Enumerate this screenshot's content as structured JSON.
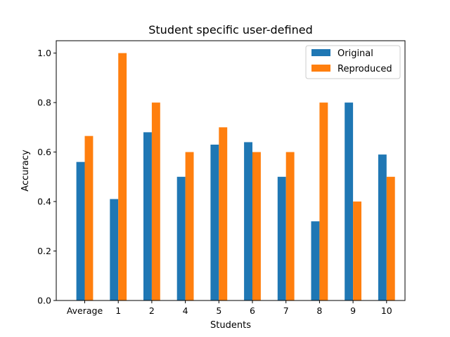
{
  "chart_data": {
    "type": "bar",
    "title": "Student specific user-defined",
    "xlabel": "Students",
    "ylabel": "Accuracy",
    "categories": [
      "Average",
      "1",
      "2",
      "4",
      "5",
      "6",
      "7",
      "8",
      "9",
      "10"
    ],
    "series": [
      {
        "name": "Original",
        "color": "#1f77b4",
        "values": [
          0.56,
          0.41,
          0.68,
          0.5,
          0.63,
          0.64,
          0.5,
          0.32,
          0.8,
          0.59
        ]
      },
      {
        "name": "Reproduced",
        "color": "#ff7f0e",
        "values": [
          0.665,
          1.0,
          0.8,
          0.6,
          0.7,
          0.6,
          0.6,
          0.8,
          0.4,
          0.5
        ]
      }
    ],
    "ylim": [
      0,
      1.05
    ],
    "yticks": [
      0.0,
      0.2,
      0.4,
      0.6,
      0.8,
      1.0
    ],
    "ytick_labels": [
      "0.0",
      "0.2",
      "0.4",
      "0.6",
      "0.8",
      "1.0"
    ],
    "grid": false,
    "legend_position": "top-right"
  }
}
